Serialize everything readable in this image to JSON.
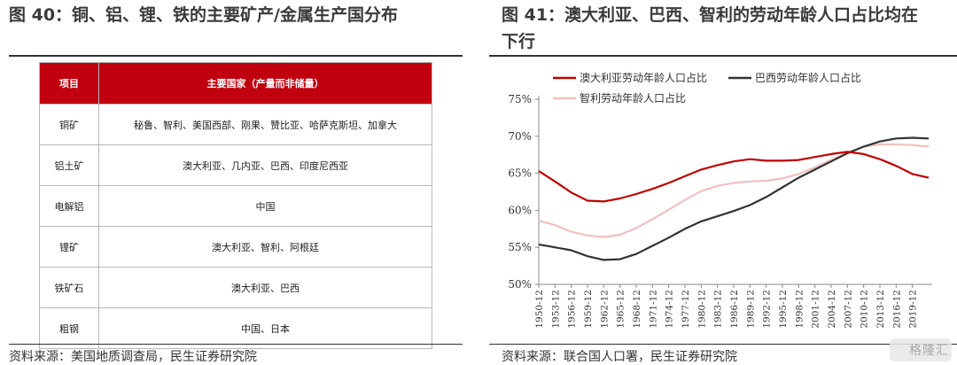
{
  "left_panel": {
    "title": "图 40：铜、铝、锂、铁的主要矿产/金属生产国分布",
    "table": {
      "headers": [
        "项目",
        "主要国家（产量而非储量）"
      ],
      "rows": [
        [
          "铜矿",
          "秘鲁、智利、美国西部、刚果、赞比亚、哈萨克斯坦、加拿大"
        ],
        [
          "铝土矿",
          "澳大利亚、几内亚、巴西、印度尼西亚"
        ],
        [
          "电解铝",
          "中国"
        ],
        [
          "锂矿",
          "澳大利亚、智利、阿根廷"
        ],
        [
          "铁矿石",
          "澳大利亚、巴西"
        ],
        [
          "粗钢",
          "中国、日本"
        ]
      ]
    },
    "source": "资料来源：美国地质调查局，民生证券研究院"
  },
  "right_panel": {
    "title_line1": "图 41：澳大利亚、巴西、智利的劳动年龄人口占比均在",
    "title_line2": "下行",
    "source": "资料来源：联合国人口署，民生证券研究院"
  },
  "watermark": "格隆汇",
  "colors": {
    "header_red": "#c0000e",
    "australia": "#c00000",
    "brazil": "#333333",
    "chile": "#f2bfc0"
  },
  "chart_data": {
    "type": "line",
    "title": "",
    "xlabel": "",
    "ylabel": "",
    "y_unit": "%",
    "ylim": [
      50,
      75
    ],
    "yticks": [
      50,
      55,
      60,
      65,
      70,
      75
    ],
    "legend_position": "top",
    "grid": false,
    "x": [
      "1950-12",
      "1953-12",
      "1956-12",
      "1959-12",
      "1962-12",
      "1965-12",
      "1968-12",
      "1971-12",
      "1974-12",
      "1977-12",
      "1980-12",
      "1983-12",
      "1986-12",
      "1989-12",
      "1992-12",
      "1995-12",
      "1998-12",
      "2001-12",
      "2004-12",
      "2007-12",
      "2010-12",
      "2013-12",
      "2016-12",
      "2019-12",
      "2021-12"
    ],
    "xtick_labels": [
      "1950-12",
      "1953-12",
      "1956-12",
      "1959-12",
      "1962-12",
      "1965-12",
      "1968-12",
      "1971-12",
      "1974-12",
      "1977-12",
      "1980-12",
      "1983-12",
      "1986-12",
      "1989-12",
      "1992-12",
      "1995-12",
      "1998-12",
      "2001-12",
      "2004-12",
      "2007-12",
      "2010-12",
      "2013-12",
      "2016-12",
      "2019-12"
    ],
    "series": [
      {
        "name": "澳大利亚劳动年龄人口占比",
        "color": "#c00000",
        "values": [
          65.3,
          63.9,
          62.4,
          61.3,
          61.2,
          61.6,
          62.2,
          62.9,
          63.7,
          64.6,
          65.5,
          66.1,
          66.6,
          66.9,
          66.7,
          66.7,
          66.8,
          67.2,
          67.6,
          67.9,
          67.6,
          66.9,
          66.0,
          64.9,
          64.4
        ]
      },
      {
        "name": "巴西劳动年龄人口占比",
        "color": "#333333",
        "values": [
          55.4,
          55.0,
          54.6,
          53.8,
          53.3,
          53.4,
          54.1,
          55.2,
          56.3,
          57.5,
          58.5,
          59.2,
          59.9,
          60.7,
          61.8,
          63.1,
          64.4,
          65.5,
          66.6,
          67.7,
          68.6,
          69.3,
          69.7,
          69.8,
          69.7
        ]
      },
      {
        "name": "智利劳动年龄人口占比",
        "color": "#f2bfc0",
        "values": [
          58.6,
          58.0,
          57.1,
          56.6,
          56.4,
          56.7,
          57.6,
          58.8,
          60.1,
          61.4,
          62.6,
          63.3,
          63.7,
          63.9,
          64.0,
          64.3,
          64.9,
          65.8,
          66.8,
          67.8,
          68.6,
          68.9,
          68.9,
          68.8,
          68.6
        ]
      }
    ]
  }
}
